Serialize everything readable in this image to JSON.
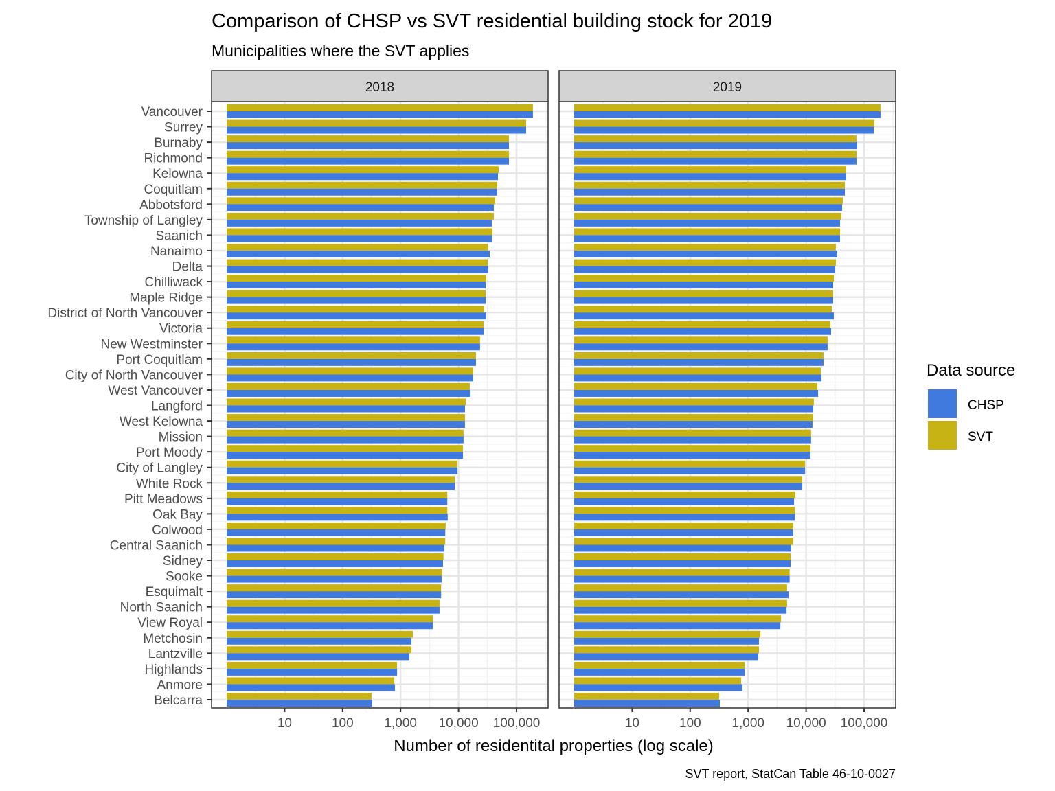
{
  "chart_data": {
    "type": "bar",
    "orientation": "horizontal",
    "title": "Comparison of CHSP vs SVT residential building stock for 2019",
    "subtitle": "Municipalities where the SVT applies",
    "xlabel": "Number of residentital properties (log scale)",
    "ylabel": "",
    "caption": "SVT report, StatCan Table 46-10-0027",
    "x_scale": "log10",
    "xlim": [
      1,
      300000
    ],
    "x_ticks": [
      10,
      100,
      1000,
      10000,
      100000
    ],
    "x_tick_labels": [
      "10",
      "100",
      "1,000",
      "10,000",
      "100,000"
    ],
    "grid": true,
    "legend": {
      "title": "Data source",
      "position": "right",
      "entries": [
        {
          "name": "CHSP",
          "color": "#407ADE"
        },
        {
          "name": "SVT",
          "color": "#C8B315"
        }
      ]
    },
    "categories": [
      "Vancouver",
      "Surrey",
      "Burnaby",
      "Richmond",
      "Kelowna",
      "Coquitlam",
      "Abbotsford",
      "Township of Langley",
      "Saanich",
      "Nanaimo",
      "Delta",
      "Chilliwack",
      "Maple Ridge",
      "District of North Vancouver",
      "Victoria",
      "New Westminster",
      "Port Coquitlam",
      "City of North Vancouver",
      "West Vancouver",
      "Langford",
      "West Kelowna",
      "Mission",
      "Port Moody",
      "City of Langley",
      "White Rock",
      "Pitt Meadows",
      "Oak Bay",
      "Colwood",
      "Central Saanich",
      "Sidney",
      "Sooke",
      "Esquimalt",
      "North Saanich",
      "View Royal",
      "Metchosin",
      "Lantzville",
      "Highlands",
      "Anmore",
      "Belcarra"
    ],
    "panels": [
      {
        "label": "2018",
        "series": [
          {
            "name": "SVT",
            "values": [
              192000,
              146500,
              74000,
              74000,
              49200,
              46600,
              42900,
              40600,
              38500,
              32600,
              31800,
              30100,
              29300,
              27700,
              27000,
              23500,
              20000,
              17900,
              15600,
              13300,
              12900,
              12200,
              11900,
              9600,
              8600,
              6400,
              6400,
              6000,
              5900,
              5500,
              5200,
              5000,
              4700,
              3600,
              1630,
              1540,
              870,
              780,
              316
            ]
          },
          {
            "name": "CHSP",
            "values": [
              192000,
              146500,
              74000,
              74000,
              47900,
              46600,
              40600,
              37400,
              38500,
              34500,
              32600,
              29300,
              29300,
              30100,
              27000,
              23500,
              20000,
              17900,
              16100,
              12900,
              12900,
              12200,
              11900,
              9600,
              8600,
              6400,
              6500,
              5900,
              5700,
              5400,
              5100,
              5000,
              4700,
              3600,
              1540,
              1420,
              870,
              800,
              325
            ]
          }
        ]
      },
      {
        "label": "2019",
        "series": [
          {
            "name": "SVT",
            "values": [
              192000,
              150600,
              74000,
              74000,
              49200,
              46600,
              42900,
              40600,
              38500,
              32600,
              32600,
              30100,
              29300,
              27700,
              26300,
              23500,
              20000,
              17900,
              15600,
              13600,
              13300,
              12200,
              11900,
              9600,
              8600,
              6500,
              6400,
              6000,
              6000,
              5400,
              5200,
              4700,
              4700,
              3700,
              1630,
              1540,
              870,
              760,
              316
            ]
          },
          {
            "name": "CHSP",
            "values": [
              192000,
              146500,
              76200,
              74000,
              49200,
              46600,
              41800,
              38500,
              38500,
              34500,
              31800,
              29300,
              29300,
              30100,
              27000,
              23500,
              20000,
              18400,
              16100,
              13300,
              12900,
              12200,
              11900,
              9600,
              8600,
              6200,
              6400,
              6000,
              5500,
              5400,
              5200,
              5000,
              4600,
              3600,
              1540,
              1500,
              870,
              800,
              325
            ]
          }
        ]
      }
    ]
  }
}
